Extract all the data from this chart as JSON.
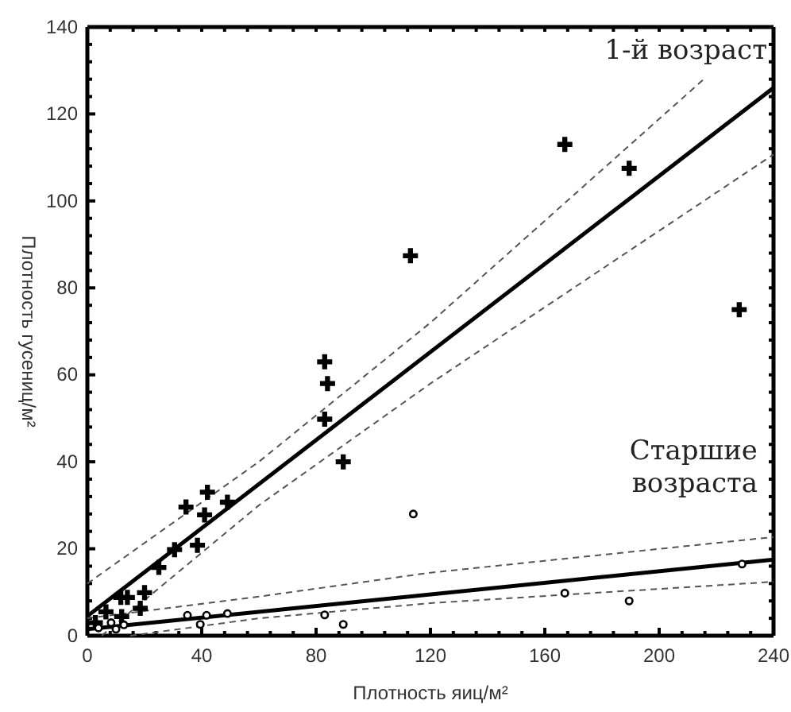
{
  "chart_data": {
    "type": "scatter",
    "xlabel": "Плотность яиц/м²",
    "ylabel": "Плотность гусениц/м²",
    "xlim": [
      0,
      240
    ],
    "ylim": [
      0,
      140
    ],
    "xticks": [
      0,
      {
        "value": 8,
        "label": null
      },
      {
        "value": 16,
        "label": null
      },
      {
        "value": 24,
        "label": null
      },
      {
        "value": 32,
        "label": null
      },
      40,
      {
        "value": 48,
        "label": null
      },
      {
        "value": 56,
        "label": null
      },
      {
        "value": 64,
        "label": null
      },
      {
        "value": 72,
        "label": null
      },
      80,
      {
        "value": 88,
        "label": null
      },
      {
        "value": 96,
        "label": null
      },
      {
        "value": 104,
        "label": null
      },
      {
        "value": 112,
        "label": null
      },
      120,
      {
        "value": 128,
        "label": null
      },
      {
        "value": 136,
        "label": null
      },
      {
        "value": 144,
        "label": null
      },
      {
        "value": 152,
        "label": null
      },
      160,
      {
        "value": 168,
        "label": null
      },
      {
        "value": 176,
        "label": null
      },
      {
        "value": 184,
        "label": null
      },
      {
        "value": 192,
        "label": null
      },
      200,
      {
        "value": 208,
        "label": null
      },
      {
        "value": 216,
        "label": null
      },
      {
        "value": 224,
        "label": null
      },
      {
        "value": 232,
        "label": null
      },
      240
    ],
    "yticks": [
      0,
      {
        "value": 4,
        "label": null
      },
      {
        "value": 8,
        "label": null
      },
      {
        "value": 12,
        "label": null
      },
      {
        "value": 16,
        "label": null
      },
      20,
      {
        "value": 24,
        "label": null
      },
      {
        "value": 28,
        "label": null
      },
      {
        "value": 32,
        "label": null
      },
      {
        "value": 36,
        "label": null
      },
      40,
      {
        "value": 44,
        "label": null
      },
      {
        "value": 48,
        "label": null
      },
      {
        "value": 52,
        "label": null
      },
      {
        "value": 56,
        "label": null
      },
      60,
      {
        "value": 64,
        "label": null
      },
      {
        "value": 68,
        "label": null
      },
      {
        "value": 72,
        "label": null
      },
      {
        "value": 76,
        "label": null
      },
      80,
      {
        "value": 84,
        "label": null
      },
      {
        "value": 88,
        "label": null
      },
      {
        "value": 92,
        "label": null
      },
      {
        "value": 96,
        "label": null
      },
      100,
      {
        "value": 104,
        "label": null
      },
      {
        "value": 108,
        "label": null
      },
      {
        "value": 112,
        "label": null
      },
      {
        "value": 116,
        "label": null
      },
      120,
      {
        "value": 124,
        "label": null
      },
      {
        "value": 128,
        "label": null
      },
      {
        "value": 132,
        "label": null
      },
      {
        "value": 136,
        "label": null
      },
      140
    ],
    "grid": false,
    "annotations": [
      "1-й возраст",
      "Старшие\nвозраста"
    ],
    "series": [
      {
        "marker": "cross",
        "color": "#000000",
        "x": [
          228,
          167,
          189.5,
          113,
          83,
          84,
          83,
          89.5,
          42,
          34.5,
          41,
          49,
          38.5,
          30.5,
          25,
          20,
          18.5,
          14,
          11.7,
          6.5,
          12,
          2.8
        ],
        "values": [
          75,
          113,
          107.5,
          87.4,
          63,
          58,
          49.8,
          40,
          33,
          29.6,
          27.8,
          30.7,
          20.8,
          19.8,
          15.7,
          9.9,
          6.3,
          8.8,
          8.8,
          5.5,
          4.4,
          3
        ]
      },
      {
        "marker": "circle",
        "color": "#000000",
        "x": [
          114,
          167,
          189.5,
          229,
          35,
          41.7,
          49,
          83,
          89.5,
          39.5,
          3.9,
          10,
          8.3,
          12.8
        ],
        "values": [
          28,
          9.8,
          8,
          16.5,
          4.7,
          4.7,
          5.1,
          4.8,
          2.6,
          2.6,
          1.8,
          1.5,
          3,
          2.5
        ]
      },
      {
        "type": "line",
        "marker": "none",
        "line_style": "solid",
        "color": "#000000",
        "x": [
          0,
          240
        ],
        "values": [
          4.5,
          126
        ]
      },
      {
        "type": "line",
        "marker": "none",
        "line_style": "dashed",
        "color": "#555555",
        "x": [
          0,
          60,
          120,
          215.6
        ],
        "values": [
          12,
          40,
          72,
          128
        ]
      },
      {
        "type": "line",
        "marker": "none",
        "line_style": "dashed",
        "color": "#555555",
        "x": [
          5,
          60,
          120,
          240
        ],
        "values": [
          0,
          30,
          58,
          110.7
        ]
      },
      {
        "type": "line",
        "marker": "none",
        "line_style": "solid",
        "color": "#000000",
        "x": [
          0,
          240
        ],
        "values": [
          1.5,
          17.5
        ]
      },
      {
        "type": "line",
        "marker": "none",
        "line_style": "dashed",
        "color": "#555555",
        "x": [
          0,
          60,
          120,
          240
        ],
        "values": [
          4,
          9,
          14.5,
          22.7
        ]
      },
      {
        "type": "line",
        "marker": "none",
        "line_style": "dashed",
        "color": "#555555",
        "x": [
          15,
          60,
          120,
          240
        ],
        "values": [
          0,
          4,
          7.5,
          12.4
        ]
      }
    ]
  }
}
